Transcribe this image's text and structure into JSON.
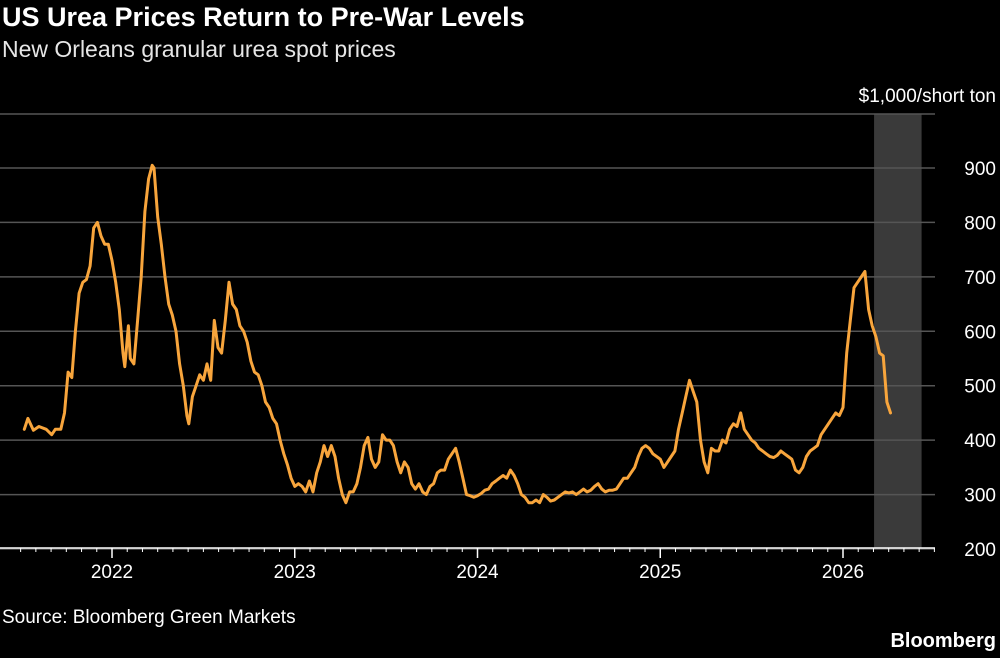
{
  "title": "US Urea Prices Return to Pre-War Levels",
  "subtitle": "New Orleans granular urea spot prices",
  "source": "Source: Bloomberg Green Markets",
  "brand": "Bloomberg",
  "colors": {
    "line": "#f8a53c",
    "shade": "#3a3a3a",
    "grid": "#555555",
    "background": "#000000"
  },
  "chart_data": {
    "type": "line",
    "unit_label": "$1,000/short ton",
    "ylim": [
      180,
      980
    ],
    "yticks": [
      200,
      300,
      400,
      500,
      600,
      700,
      800,
      900
    ],
    "xlim": [
      2021.5,
      2026.5
    ],
    "xticks": [
      {
        "x": 2022,
        "label": "2022"
      },
      {
        "x": 2023,
        "label": "2023"
      },
      {
        "x": 2024,
        "label": "2024"
      },
      {
        "x": 2025,
        "label": "2025"
      },
      {
        "x": 2026,
        "label": "2026"
      }
    ],
    "grid": true,
    "shaded_region": [
      2026.17,
      2026.43
    ],
    "series": [
      {
        "points": [
          [
            2021.52,
            420
          ],
          [
            2021.54,
            440
          ],
          [
            2021.57,
            418
          ],
          [
            2021.6,
            425
          ],
          [
            2021.64,
            420
          ],
          [
            2021.67,
            410
          ],
          [
            2021.69,
            420
          ],
          [
            2021.72,
            420
          ],
          [
            2021.74,
            450
          ],
          [
            2021.76,
            525
          ],
          [
            2021.78,
            515
          ],
          [
            2021.8,
            600
          ],
          [
            2021.82,
            670
          ],
          [
            2021.84,
            690
          ],
          [
            2021.86,
            695
          ],
          [
            2021.88,
            720
          ],
          [
            2021.9,
            790
          ],
          [
            2021.92,
            800
          ],
          [
            2021.94,
            775
          ],
          [
            2021.96,
            760
          ],
          [
            2021.98,
            760
          ],
          [
            2022.0,
            730
          ],
          [
            2022.02,
            690
          ],
          [
            2022.04,
            640
          ],
          [
            2022.06,
            560
          ],
          [
            2022.07,
            535
          ],
          [
            2022.09,
            610
          ],
          [
            2022.1,
            550
          ],
          [
            2022.12,
            540
          ],
          [
            2022.14,
            620
          ],
          [
            2022.16,
            700
          ],
          [
            2022.18,
            820
          ],
          [
            2022.2,
            880
          ],
          [
            2022.22,
            905
          ],
          [
            2022.23,
            900
          ],
          [
            2022.25,
            810
          ],
          [
            2022.27,
            760
          ],
          [
            2022.29,
            700
          ],
          [
            2022.31,
            650
          ],
          [
            2022.33,
            630
          ],
          [
            2022.35,
            600
          ],
          [
            2022.37,
            540
          ],
          [
            2022.39,
            500
          ],
          [
            2022.41,
            445
          ],
          [
            2022.42,
            430
          ],
          [
            2022.44,
            480
          ],
          [
            2022.46,
            500
          ],
          [
            2022.48,
            520
          ],
          [
            2022.5,
            510
          ],
          [
            2022.52,
            540
          ],
          [
            2022.54,
            510
          ],
          [
            2022.56,
            620
          ],
          [
            2022.58,
            570
          ],
          [
            2022.6,
            560
          ],
          [
            2022.62,
            620
          ],
          [
            2022.64,
            690
          ],
          [
            2022.66,
            650
          ],
          [
            2022.68,
            640
          ],
          [
            2022.7,
            610
          ],
          [
            2022.72,
            600
          ],
          [
            2022.74,
            580
          ],
          [
            2022.76,
            545
          ],
          [
            2022.78,
            525
          ],
          [
            2022.8,
            520
          ],
          [
            2022.82,
            500
          ],
          [
            2022.84,
            470
          ],
          [
            2022.86,
            460
          ],
          [
            2022.88,
            440
          ],
          [
            2022.9,
            430
          ],
          [
            2022.92,
            400
          ],
          [
            2022.94,
            375
          ],
          [
            2022.96,
            355
          ],
          [
            2022.98,
            330
          ],
          [
            2023.0,
            315
          ],
          [
            2023.02,
            320
          ],
          [
            2023.04,
            315
          ],
          [
            2023.06,
            305
          ],
          [
            2023.08,
            325
          ],
          [
            2023.1,
            305
          ],
          [
            2023.12,
            340
          ],
          [
            2023.14,
            360
          ],
          [
            2023.16,
            390
          ],
          [
            2023.18,
            370
          ],
          [
            2023.2,
            390
          ],
          [
            2023.22,
            370
          ],
          [
            2023.24,
            330
          ],
          [
            2023.26,
            300
          ],
          [
            2023.28,
            285
          ],
          [
            2023.3,
            305
          ],
          [
            2023.32,
            305
          ],
          [
            2023.34,
            320
          ],
          [
            2023.36,
            350
          ],
          [
            2023.38,
            390
          ],
          [
            2023.4,
            405
          ],
          [
            2023.42,
            365
          ],
          [
            2023.44,
            350
          ],
          [
            2023.46,
            360
          ],
          [
            2023.48,
            410
          ],
          [
            2023.5,
            400
          ],
          [
            2023.52,
            400
          ],
          [
            2023.54,
            390
          ],
          [
            2023.56,
            360
          ],
          [
            2023.58,
            340
          ],
          [
            2023.6,
            360
          ],
          [
            2023.62,
            350
          ],
          [
            2023.64,
            320
          ],
          [
            2023.66,
            310
          ],
          [
            2023.68,
            320
          ],
          [
            2023.7,
            305
          ],
          [
            2023.72,
            300
          ],
          [
            2023.74,
            315
          ],
          [
            2023.76,
            320
          ],
          [
            2023.78,
            340
          ],
          [
            2023.8,
            345
          ],
          [
            2023.82,
            345
          ],
          [
            2023.84,
            365
          ],
          [
            2023.86,
            375
          ],
          [
            2023.88,
            385
          ],
          [
            2023.9,
            360
          ],
          [
            2023.92,
            330
          ],
          [
            2023.94,
            300
          ],
          [
            2023.96,
            298
          ],
          [
            2023.98,
            295
          ],
          [
            2024.0,
            298
          ],
          [
            2024.02,
            302
          ],
          [
            2024.04,
            308
          ],
          [
            2024.06,
            310
          ],
          [
            2024.08,
            320
          ],
          [
            2024.1,
            325
          ],
          [
            2024.12,
            330
          ],
          [
            2024.14,
            335
          ],
          [
            2024.16,
            330
          ],
          [
            2024.18,
            345
          ],
          [
            2024.2,
            335
          ],
          [
            2024.22,
            320
          ],
          [
            2024.24,
            300
          ],
          [
            2024.26,
            295
          ],
          [
            2024.28,
            285
          ],
          [
            2024.3,
            285
          ],
          [
            2024.32,
            290
          ],
          [
            2024.34,
            285
          ],
          [
            2024.36,
            300
          ],
          [
            2024.38,
            295
          ],
          [
            2024.4,
            288
          ],
          [
            2024.42,
            290
          ],
          [
            2024.44,
            295
          ],
          [
            2024.46,
            300
          ],
          [
            2024.48,
            305
          ],
          [
            2024.5,
            303
          ],
          [
            2024.52,
            305
          ],
          [
            2024.54,
            300
          ],
          [
            2024.56,
            305
          ],
          [
            2024.58,
            310
          ],
          [
            2024.6,
            305
          ],
          [
            2024.62,
            308
          ],
          [
            2024.64,
            315
          ],
          [
            2024.66,
            320
          ],
          [
            2024.68,
            310
          ],
          [
            2024.7,
            305
          ],
          [
            2024.72,
            308
          ],
          [
            2024.74,
            308
          ],
          [
            2024.76,
            310
          ],
          [
            2024.78,
            320
          ],
          [
            2024.8,
            330
          ],
          [
            2024.82,
            330
          ],
          [
            2024.84,
            340
          ],
          [
            2024.86,
            350
          ],
          [
            2024.88,
            370
          ],
          [
            2024.9,
            385
          ],
          [
            2024.92,
            390
          ],
          [
            2024.94,
            385
          ],
          [
            2024.96,
            375
          ],
          [
            2024.98,
            370
          ],
          [
            2025.0,
            365
          ],
          [
            2025.02,
            350
          ],
          [
            2025.04,
            360
          ],
          [
            2025.06,
            370
          ],
          [
            2025.08,
            380
          ],
          [
            2025.1,
            420
          ],
          [
            2025.12,
            450
          ],
          [
            2025.14,
            480
          ],
          [
            2025.16,
            510
          ],
          [
            2025.18,
            490
          ],
          [
            2025.2,
            470
          ],
          [
            2025.22,
            400
          ],
          [
            2025.24,
            360
          ],
          [
            2025.26,
            340
          ],
          [
            2025.28,
            385
          ],
          [
            2025.3,
            380
          ],
          [
            2025.32,
            380
          ],
          [
            2025.34,
            400
          ],
          [
            2025.36,
            395
          ],
          [
            2025.38,
            420
          ],
          [
            2025.4,
            430
          ],
          [
            2025.42,
            425
          ],
          [
            2025.44,
            450
          ],
          [
            2025.46,
            420
          ],
          [
            2025.48,
            410
          ],
          [
            2025.5,
            400
          ],
          [
            2025.52,
            395
          ],
          [
            2025.54,
            385
          ],
          [
            2025.56,
            380
          ],
          [
            2025.58,
            375
          ],
          [
            2025.6,
            370
          ],
          [
            2025.62,
            368
          ],
          [
            2025.64,
            372
          ],
          [
            2025.66,
            380
          ],
          [
            2025.68,
            375
          ],
          [
            2025.7,
            370
          ],
          [
            2025.72,
            365
          ],
          [
            2025.74,
            345
          ],
          [
            2025.76,
            340
          ],
          [
            2025.78,
            350
          ],
          [
            2025.8,
            370
          ],
          [
            2025.82,
            380
          ],
          [
            2025.84,
            385
          ],
          [
            2025.86,
            390
          ],
          [
            2025.88,
            410
          ],
          [
            2025.9,
            420
          ],
          [
            2025.92,
            430
          ],
          [
            2025.94,
            440
          ],
          [
            2025.96,
            450
          ],
          [
            2025.98,
            445
          ],
          [
            2026.0,
            460
          ],
          [
            2026.02,
            560
          ],
          [
            2026.04,
            620
          ],
          [
            2026.06,
            680
          ],
          [
            2026.08,
            690
          ],
          [
            2026.1,
            700
          ],
          [
            2026.12,
            710
          ],
          [
            2026.14,
            640
          ],
          [
            2026.16,
            610
          ],
          [
            2026.18,
            590
          ],
          [
            2026.2,
            560
          ],
          [
            2026.22,
            555
          ],
          [
            2026.24,
            470
          ],
          [
            2026.26,
            450
          ]
        ]
      }
    ]
  }
}
